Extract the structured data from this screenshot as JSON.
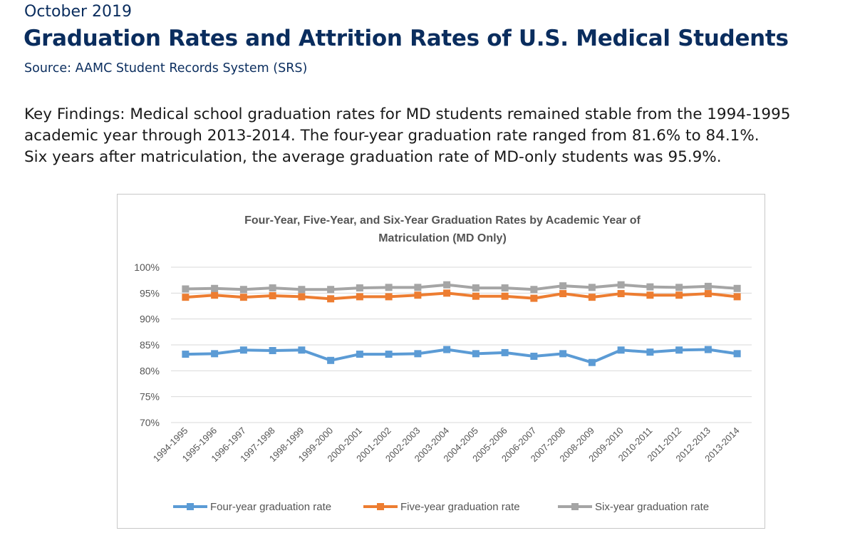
{
  "header": {
    "date": "October 2019",
    "title": "Graduation Rates and Attrition Rates of U.S. Medical Students",
    "source": "Source: AAMC Student Records System (SRS)"
  },
  "findings": {
    "line1": "Key Findings: Medical school graduation rates for MD students remained stable from the 1994-1995",
    "line2": "academic year through 2013-2014. The four-year graduation rate ranged from 81.6% to 84.1%.",
    "line3": "Six years after matriculation, the average graduation rate of MD-only students was 95.9%."
  },
  "colors": {
    "four_year": "#5b9bd5",
    "five_year": "#ed7d31",
    "six_year": "#a5a5a5",
    "grid": "#d9d9d9"
  },
  "chart_data": {
    "type": "line",
    "title_line1": "Four-Year, Five-Year, and Six-Year Graduation Rates by Academic Year of",
    "title_line2": "Matriculation (MD Only)",
    "ylim": [
      70,
      100
    ],
    "yticks": [
      100,
      95,
      90,
      85,
      80,
      75,
      70
    ],
    "ytick_labels": [
      "100%",
      "95%",
      "90%",
      "85%",
      "80%",
      "75%",
      "70%"
    ],
    "grid": true,
    "legend_position": "bottom",
    "categories": [
      "1994-1995",
      "1995-1996",
      "1996-1997",
      "1997-1998",
      "1998-1999",
      "1999-2000",
      "2000-2001",
      "2001-2002",
      "2002-2003",
      "2003-2004",
      "2004-2005",
      "2005-2006",
      "2006-2007",
      "2007-2008",
      "2008-2009",
      "2009-2010",
      "2010-2011",
      "2011-2012",
      "2012-2013",
      "2013-2014"
    ],
    "series": [
      {
        "name": "Four-year graduation rate",
        "color": "#5b9bd5",
        "values": [
          83.2,
          83.3,
          84.0,
          83.9,
          84.0,
          82.0,
          83.2,
          83.2,
          83.3,
          84.1,
          83.3,
          83.5,
          82.8,
          83.3,
          81.6,
          84.0,
          83.6,
          84.0,
          84.1,
          83.3
        ]
      },
      {
        "name": "Five-year graduation rate",
        "color": "#ed7d31",
        "values": [
          94.2,
          94.6,
          94.2,
          94.5,
          94.3,
          93.9,
          94.3,
          94.3,
          94.6,
          95.0,
          94.4,
          94.4,
          94.0,
          94.9,
          94.2,
          94.9,
          94.6,
          94.6,
          94.9,
          94.3
        ]
      },
      {
        "name": "Six-year graduation rate",
        "color": "#a5a5a5",
        "values": [
          95.8,
          95.9,
          95.7,
          96.0,
          95.7,
          95.7,
          96.0,
          96.1,
          96.1,
          96.6,
          96.0,
          96.0,
          95.7,
          96.4,
          96.1,
          96.6,
          96.2,
          96.1,
          96.3,
          95.9
        ]
      }
    ]
  }
}
